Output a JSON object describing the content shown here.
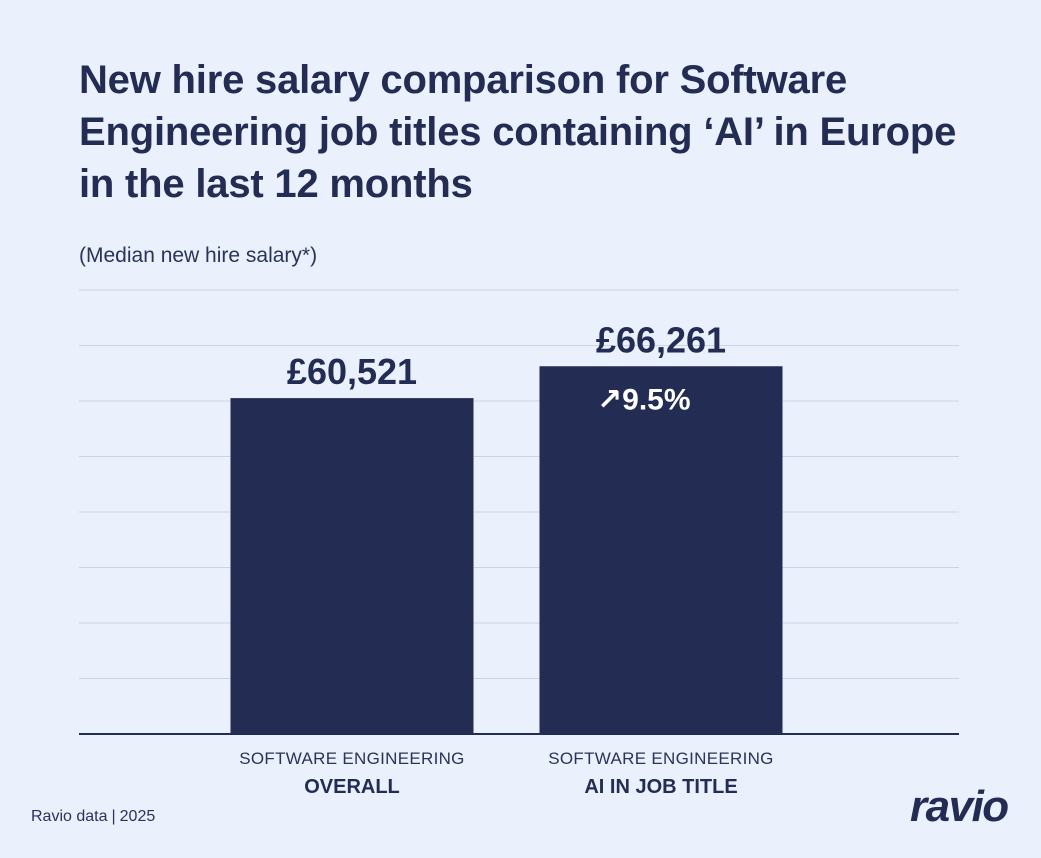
{
  "title": "New hire salary comparison for Software Engineering job titles containing ‘AI’ in Europe in the last 12 months",
  "subtitle": "(Median new hire salary*)",
  "chart_data": {
    "type": "bar",
    "categories": [
      {
        "line1": "SOFTWARE ENGINEERING",
        "line2": "OVERALL"
      },
      {
        "line1": "SOFTWARE ENGINEERING",
        "line2": "AI IN JOB TITLE"
      }
    ],
    "values": [
      60521,
      66261
    ],
    "value_labels": [
      "£60,521",
      "£66,261"
    ],
    "change_label": "9.5%",
    "change_arrow": "↗",
    "ylim": [
      0,
      80000
    ],
    "grid": true,
    "currency": "£",
    "colors": {
      "bar": "#232c52",
      "grid": "#c9d3ea",
      "axis": "#232c52"
    }
  },
  "footer": {
    "source": "Ravio data",
    "year": "2025",
    "logo": "ravio"
  }
}
